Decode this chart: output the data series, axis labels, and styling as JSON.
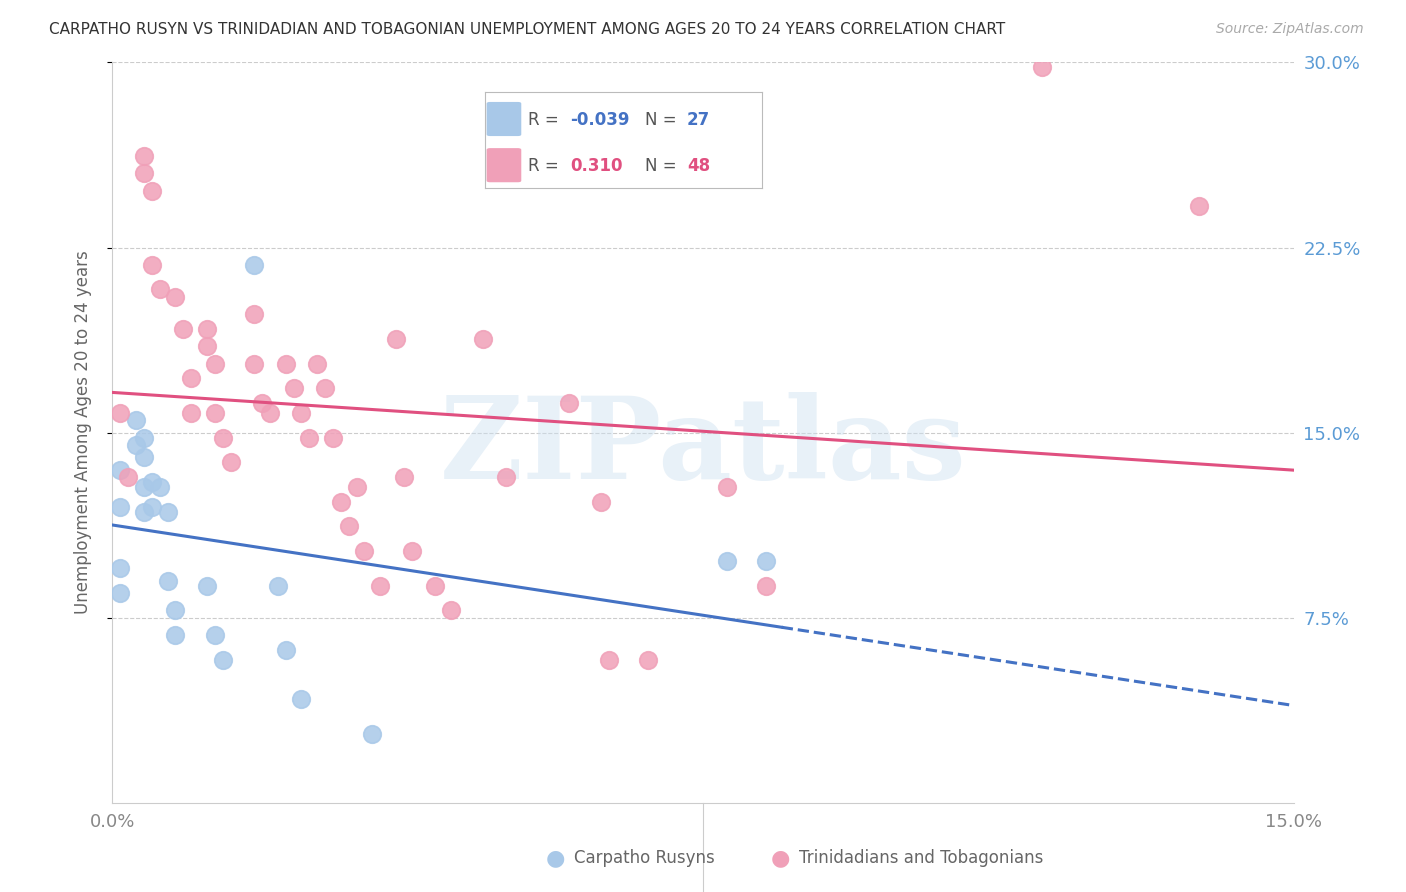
{
  "title": "CARPATHO RUSYN VS TRINIDADIAN AND TOBAGONIAN UNEMPLOYMENT AMONG AGES 20 TO 24 YEARS CORRELATION CHART",
  "source": "Source: ZipAtlas.com",
  "ylabel": "Unemployment Among Ages 20 to 24 years",
  "xmin": 0.0,
  "xmax": 0.15,
  "ymin": 0.0,
  "ymax": 0.3,
  "yticks": [
    0.075,
    0.15,
    0.225,
    0.3
  ],
  "ytick_labels": [
    "7.5%",
    "15.0%",
    "22.5%",
    "30.0%"
  ],
  "xticks": [
    0.0,
    0.025,
    0.05,
    0.075,
    0.1,
    0.125,
    0.15
  ],
  "xtick_labels": [
    "0.0%",
    "",
    "",
    "",
    "",
    "",
    "15.0%"
  ],
  "blue_R": -0.039,
  "blue_N": 27,
  "pink_R": 0.31,
  "pink_N": 48,
  "blue_color": "#a8c8e8",
  "pink_color": "#f0a0b8",
  "blue_line_color": "#4472c4",
  "pink_line_color": "#e05080",
  "blue_line_solid_end": 0.085,
  "watermark_text": "ZIPatlas",
  "blue_scatter_x": [
    0.001,
    0.001,
    0.001,
    0.001,
    0.003,
    0.003,
    0.004,
    0.004,
    0.004,
    0.004,
    0.005,
    0.005,
    0.006,
    0.007,
    0.007,
    0.008,
    0.008,
    0.012,
    0.013,
    0.014,
    0.018,
    0.021,
    0.022,
    0.024,
    0.033,
    0.078,
    0.083
  ],
  "blue_scatter_y": [
    0.135,
    0.12,
    0.095,
    0.085,
    0.155,
    0.145,
    0.148,
    0.14,
    0.128,
    0.118,
    0.13,
    0.12,
    0.128,
    0.118,
    0.09,
    0.078,
    0.068,
    0.088,
    0.068,
    0.058,
    0.218,
    0.088,
    0.062,
    0.042,
    0.028,
    0.098,
    0.098
  ],
  "pink_scatter_x": [
    0.001,
    0.002,
    0.004,
    0.004,
    0.005,
    0.005,
    0.006,
    0.008,
    0.009,
    0.01,
    0.01,
    0.012,
    0.012,
    0.013,
    0.013,
    0.014,
    0.015,
    0.018,
    0.018,
    0.019,
    0.02,
    0.022,
    0.023,
    0.024,
    0.025,
    0.026,
    0.027,
    0.028,
    0.029,
    0.03,
    0.031,
    0.032,
    0.034,
    0.036,
    0.037,
    0.038,
    0.041,
    0.043,
    0.047,
    0.05,
    0.058,
    0.062,
    0.063,
    0.068,
    0.078,
    0.083,
    0.118,
    0.138
  ],
  "pink_scatter_y": [
    0.158,
    0.132,
    0.262,
    0.255,
    0.248,
    0.218,
    0.208,
    0.205,
    0.192,
    0.172,
    0.158,
    0.192,
    0.185,
    0.178,
    0.158,
    0.148,
    0.138,
    0.198,
    0.178,
    0.162,
    0.158,
    0.178,
    0.168,
    0.158,
    0.148,
    0.178,
    0.168,
    0.148,
    0.122,
    0.112,
    0.128,
    0.102,
    0.088,
    0.188,
    0.132,
    0.102,
    0.088,
    0.078,
    0.188,
    0.132,
    0.162,
    0.122,
    0.058,
    0.058,
    0.128,
    0.088,
    0.298,
    0.242
  ]
}
